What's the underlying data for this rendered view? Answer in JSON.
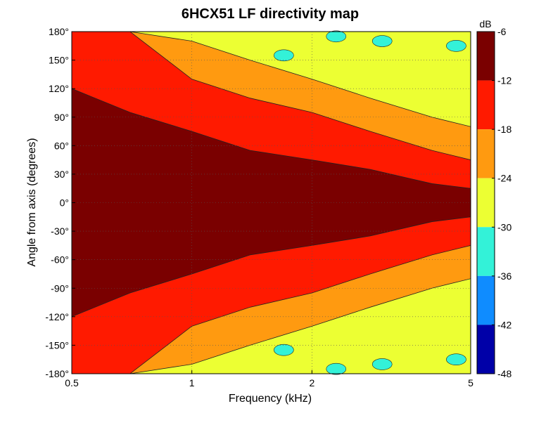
{
  "chart_data": {
    "type": "heatmap",
    "title": "6HCX51 LF directivity map",
    "xlabel": "Frequency (kHz)",
    "ylabel": "Angle from axis (degrees)",
    "x_scale": "log",
    "xlim": [
      0.5,
      5
    ],
    "ylim": [
      -180,
      180
    ],
    "x_ticks": [
      0.5,
      1,
      2,
      5
    ],
    "x_tick_labels": [
      "0.5",
      "1",
      "2",
      "5"
    ],
    "y_ticks": [
      180,
      150,
      120,
      90,
      60,
      30,
      0,
      -30,
      -60,
      -90,
      -120,
      -150,
      -180
    ],
    "y_tick_labels": [
      "180°",
      "150°",
      "120°",
      "90°",
      "60°",
      "30°",
      "0°",
      "-30°",
      "-60°",
      "-90°",
      "-120°",
      "-150°",
      "-180°"
    ],
    "grid": true,
    "colorbar": {
      "unit": "dB",
      "range": [
        -48,
        -6
      ],
      "ticks": [
        -6,
        -12,
        -18,
        -24,
        -30,
        -36,
        -42,
        -48
      ],
      "tick_labels": [
        "-6",
        "-12",
        "-18",
        "-24",
        "-30",
        "-36",
        "-42",
        "-48"
      ],
      "colors": [
        "#7a0000",
        "#ff1a00",
        "#ff9a10",
        "#ecff33",
        "#33f2d8",
        "#0f8cff",
        "#0000a8"
      ]
    },
    "contour_levels": [
      -6,
      -12,
      -18,
      -24,
      -30
    ],
    "frequencies_khz": [
      0.5,
      0.7,
      1.0,
      1.4,
      2.0,
      2.8,
      4.0,
      5.0
    ],
    "half_beamwidth_deg": {
      "-6dB": [
        120,
        95,
        75,
        55,
        45,
        35,
        20,
        15
      ],
      "-12dB": [
        180,
        180,
        130,
        110,
        95,
        75,
        55,
        45
      ],
      "-18dB": [
        180,
        180,
        170,
        150,
        130,
        110,
        90,
        80
      ]
    }
  }
}
